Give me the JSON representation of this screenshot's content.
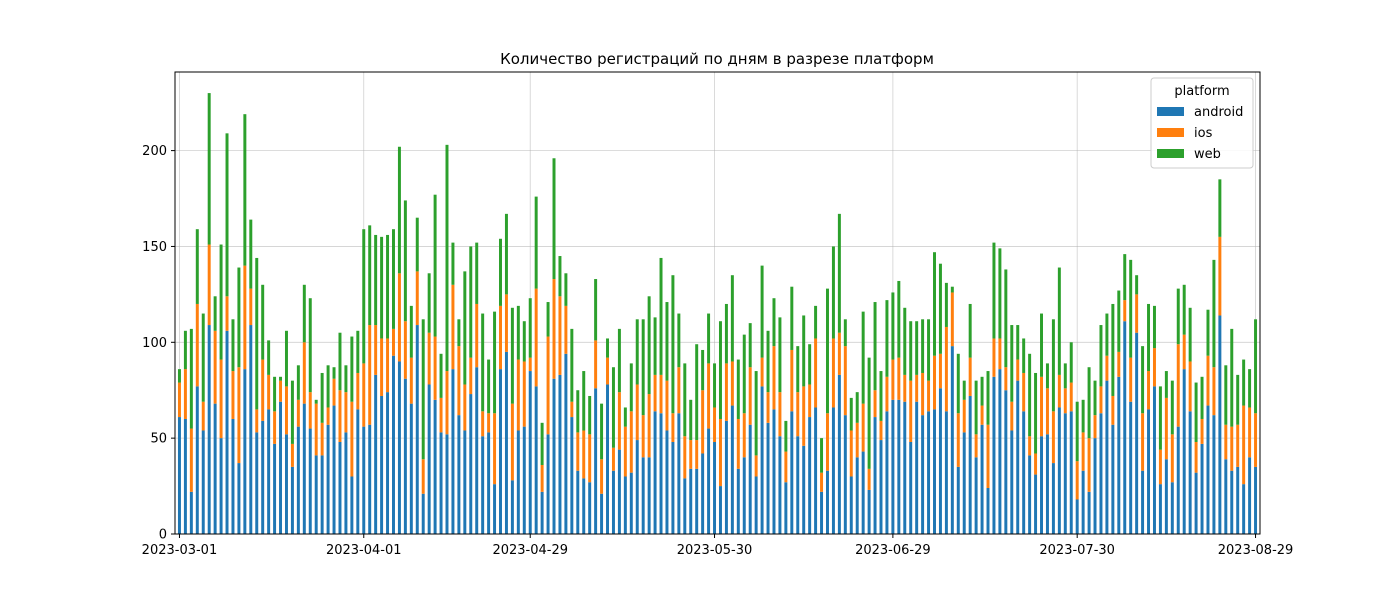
{
  "chart_data": {
    "type": "bar",
    "stacked": true,
    "title": "Количество регистраций по дням в разрезе платформ",
    "xlabel": "",
    "ylabel": "",
    "start_date": "2023-03-01",
    "x_tick_labels": [
      "2023-03-01",
      "2023-04-01",
      "2023-04-29",
      "2023-05-30",
      "2023-06-29",
      "2023-07-30",
      "2023-08-29"
    ],
    "y_ticks": [
      0,
      50,
      100,
      150,
      200
    ],
    "ylim": [
      0,
      241
    ],
    "grid": true,
    "legend": {
      "title": "platform",
      "placement": "top-right"
    },
    "series": [
      {
        "name": "android",
        "color": "#1f77b4",
        "values": [
          61,
          60,
          22,
          77,
          54,
          109,
          68,
          50,
          106,
          60,
          37,
          86,
          109,
          53,
          59,
          65,
          47,
          69,
          52,
          35,
          56,
          68,
          55,
          41,
          41,
          57,
          67,
          48,
          53,
          30,
          65,
          56,
          57,
          83,
          72,
          74,
          93,
          90,
          81,
          68,
          109,
          21,
          78,
          70,
          53,
          52,
          86,
          62,
          54,
          73,
          87,
          51,
          53,
          26,
          86,
          95,
          28,
          54,
          56,
          85,
          77,
          22,
          52,
          81,
          83,
          94,
          61,
          33,
          29,
          27,
          76,
          21,
          78,
          33,
          44,
          30,
          32,
          49,
          40,
          40,
          64,
          63,
          54,
          48,
          63,
          29,
          34,
          34,
          42,
          55,
          48,
          25,
          59,
          67,
          34,
          40,
          57,
          30,
          77,
          58,
          65,
          51,
          27,
          64,
          51,
          46,
          61,
          66,
          22,
          33,
          66,
          83,
          62,
          30,
          40,
          43,
          23,
          61,
          49,
          64,
          70,
          70,
          69,
          48,
          69,
          62,
          64,
          65,
          76,
          64,
          98,
          35,
          53,
          72,
          40,
          57,
          24,
          82,
          86,
          75,
          54,
          80,
          64,
          41,
          31,
          51,
          52,
          37,
          66,
          63,
          64,
          18,
          33,
          22,
          50,
          63,
          80,
          57,
          82,
          111,
          69,
          105,
          33,
          65,
          77,
          26,
          39,
          27,
          56,
          86,
          64,
          32,
          47,
          67,
          62,
          114,
          39,
          33,
          35,
          26,
          40,
          35
        ]
      },
      {
        "name": "ios",
        "color": "#ff7f0e",
        "values": [
          18,
          26,
          33,
          43,
          15,
          42,
          38,
          41,
          18,
          25,
          50,
          54,
          19,
          12,
          32,
          18,
          17,
          11,
          25,
          12,
          14,
          32,
          19,
          27,
          17,
          9,
          14,
          27,
          21,
          39,
          19,
          33,
          52,
          26,
          30,
          28,
          14,
          46,
          30,
          24,
          28,
          18,
          27,
          33,
          18,
          33,
          44,
          36,
          24,
          19,
          33,
          13,
          10,
          37,
          33,
          30,
          40,
          37,
          34,
          7,
          51,
          14,
          51,
          52,
          41,
          25,
          8,
          20,
          25,
          25,
          25,
          18,
          14,
          12,
          30,
          26,
          32,
          29,
          22,
          33,
          19,
          20,
          26,
          15,
          24,
          22,
          15,
          15,
          33,
          34,
          18,
          35,
          30,
          23,
          26,
          23,
          30,
          11,
          15,
          16,
          33,
          23,
          16,
          32,
          23,
          31,
          17,
          36,
          10,
          30,
          36,
          22,
          36,
          24,
          18,
          25,
          11,
          14,
          10,
          18,
          21,
          22,
          14,
          32,
          14,
          22,
          16,
          28,
          18,
          44,
          28,
          28,
          17,
          20,
          12,
          10,
          33,
          20,
          16,
          12,
          15,
          11,
          20,
          10,
          11,
          31,
          24,
          27,
          17,
          13,
          15,
          20,
          20,
          28,
          12,
          14,
          13,
          15,
          13,
          11,
          23,
          20,
          30,
          20,
          20,
          18,
          32,
          25,
          43,
          18,
          26,
          16,
          13,
          26,
          25,
          41,
          18,
          23,
          22,
          41,
          26,
          28
        ]
      },
      {
        "name": "web",
        "color": "#2ca02c",
        "values": [
          7,
          20,
          52,
          39,
          46,
          79,
          18,
          60,
          85,
          27,
          52,
          79,
          36,
          79,
          39,
          18,
          18,
          2,
          29,
          33,
          18,
          30,
          49,
          2,
          26,
          22,
          6,
          30,
          14,
          34,
          22,
          70,
          52,
          47,
          53,
          54,
          52,
          66,
          63,
          27,
          28,
          73,
          31,
          74,
          23,
          118,
          22,
          14,
          59,
          58,
          32,
          51,
          28,
          53,
          35,
          42,
          50,
          28,
          21,
          31,
          48,
          22,
          18,
          63,
          21,
          17,
          38,
          22,
          31,
          20,
          32,
          29,
          10,
          42,
          33,
          10,
          25,
          34,
          50,
          51,
          30,
          61,
          41,
          72,
          28,
          38,
          21,
          50,
          21,
          26,
          23,
          51,
          31,
          45,
          31,
          41,
          23,
          44,
          48,
          32,
          25,
          39,
          16,
          33,
          24,
          37,
          21,
          17,
          18,
          65,
          48,
          62,
          14,
          17,
          16,
          48,
          58,
          46,
          26,
          40,
          35,
          40,
          35,
          31,
          28,
          28,
          32,
          54,
          47,
          23,
          3,
          31,
          10,
          28,
          28,
          15,
          28,
          50,
          47,
          51,
          40,
          18,
          18,
          43,
          42,
          33,
          13,
          48,
          56,
          13,
          21,
          31,
          17,
          37,
          18,
          32,
          22,
          48,
          32,
          24,
          51,
          10,
          35,
          35,
          22,
          33,
          14,
          28,
          29,
          26,
          28,
          31,
          22,
          24,
          56,
          30,
          31,
          51,
          26,
          24,
          20,
          49
        ]
      }
    ]
  }
}
